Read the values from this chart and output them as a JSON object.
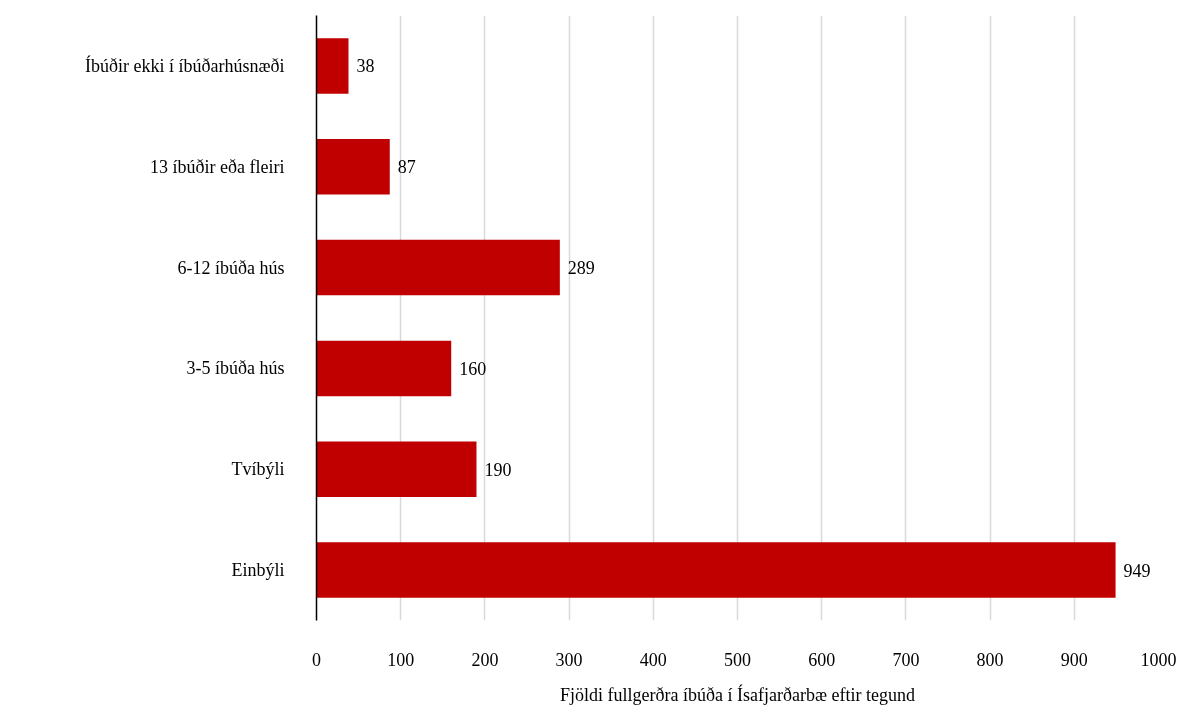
{
  "chart_data": {
    "type": "bar",
    "orientation": "horizontal",
    "categories": [
      "Íbúðir ekki í íbúðarhúsnæði",
      "13 íbúðir eða fleiri",
      "6-12 íbúða hús",
      "3-5 íbúða hús",
      "Tvíbýli",
      "Einbýli"
    ],
    "values": [
      38,
      87,
      289,
      160,
      190,
      949
    ],
    "color": "#c00000",
    "xlabel": "Fjöldi fullgerðra íbúða í Ísafjarðarbæ eftir tegund",
    "xlim": [
      0,
      1000
    ],
    "xticks": [
      0,
      100,
      200,
      300,
      400,
      500,
      600,
      700,
      800,
      900,
      1000
    ],
    "grid": "x",
    "data_labels": true
  }
}
